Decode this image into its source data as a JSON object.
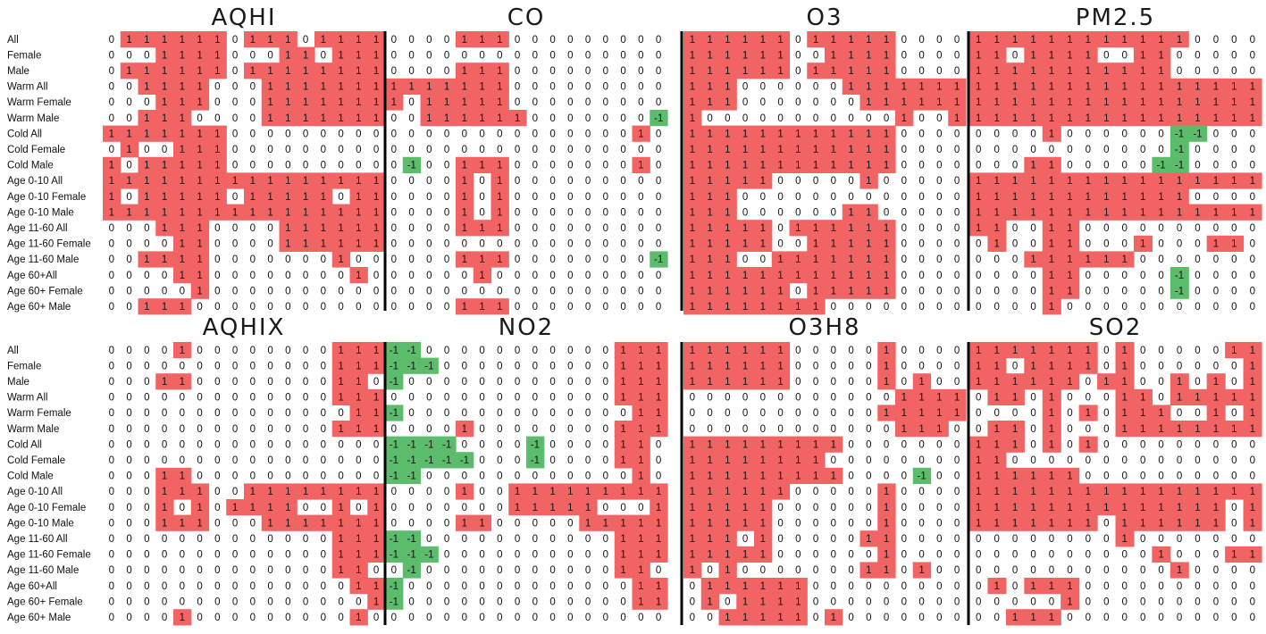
{
  "colors": {
    "positive": "#f26464",
    "negative": "#5bbd6b",
    "neutral": "#ffffff",
    "divider": "#000000"
  },
  "chart_data": [
    {
      "type": "heatmap",
      "rows": [
        "All",
        "Female",
        "Male",
        "Warm All",
        "Warm Female",
        "Warm Male",
        "Cold All",
        "Cold Female",
        "Cold Male",
        "Age 0-10 All",
        "Age 0-10 Female",
        "Age 0-10 Male",
        "Age 11-60 All",
        "Age 11-60 Female",
        "Age 11-60 Male",
        "Age 60+All",
        "Age 60+ Female",
        "Age 60+ Male"
      ],
      "panels": [
        {
          "title": "AQHI",
          "values": [
            "0111111011101111",
            "0001111000110111",
            "0111111011111111",
            "0011110001111111",
            "0001110001111111",
            "0011100001111111",
            "1111111000000000",
            "0100111000000000",
            "1011111000000000",
            "1111111111111111",
            "1011111011111011",
            "1111111111111111",
            "0001110000111111",
            "0000110000111111",
            "0011110000000100",
            "0000110000000010",
            "0000010000000000",
            "0011100000000000"
          ]
        },
        {
          "title": "CO",
          "values": [
            "0000111000000000",
            "0000000000000000",
            "0000111000000000",
            "1111111000000000",
            "1011111000000000",
            "0011111100000002",
            "0000000000000010",
            "0000000000000000",
            "0200111000000010",
            "0000101000000000",
            "0000101000000000",
            "0000101000000000",
            "0000111000000000",
            "0000000000000000",
            "0000111000000002",
            "0000010000000000",
            "0000000000000000",
            "0000111000000000"
          ]
        },
        {
          "title": "O3",
          "values": [
            "1111110111110000",
            "1111110011110000",
            "1111110111110000",
            "1110000001111111",
            "1110000000111111",
            "1000000000001001",
            "1111111111110000",
            "1111111111110000",
            "1111111111110000",
            "1111100000100000",
            "1110000000000000",
            "1110000001100000",
            "1111101111110000",
            "1111100111110000",
            "1110011111110000",
            "1111111111110000",
            "1111110111110000",
            "1111111100000000"
          ]
        },
        {
          "title": "PM2.5",
          "values": [
            "1111111111110000",
            "1101111001100000",
            "1111111111100000",
            "1111111111111111",
            "1111111111111111",
            "1111111111111111",
            "0000100000022000",
            "0000000000020000",
            "0001100000220000",
            "1111111111111111",
            "1111111111110000",
            "1111111111111111",
            "1100110000000000",
            "0100110001000110",
            "0001111110000000",
            "0000110000020000",
            "0000110000020000",
            "0000100000000000"
          ]
        },
        {
          "title": "AQHIX",
          "values": [
            "0000100000000111",
            "0000000000000111",
            "0001100000000110",
            "0000000000000111",
            "0000000000000011",
            "0000000000000111",
            "0000000000000000",
            "0000000000000000",
            "0001100000000000",
            "0001110011111111",
            "0001010111100101",
            "0001110001111111",
            "0000000000000111",
            "0000000000000111",
            "0000000000000110",
            "0000000000000011",
            "0000000000000001",
            "0000100000000010"
          ]
        },
        {
          "title": "NO2",
          "values": [
            "2200000000000111",
            "2220000000000111",
            "2000000000000111",
            "0000000000000111",
            "2000000000000011",
            "0000100000000111",
            "2222000020000110",
            "2222200020000110",
            "2200000000000010",
            "0000100111111111",
            "0000000111110001",
            "0000110000011111",
            "2200000000000111",
            "2220000000000111",
            "0200000000000110",
            "2000000000000011",
            "2000000000000011",
            "0000000000000000"
          ]
        },
        {
          "title": "O3H8",
          "values": [
            "1111110000010000",
            "1111110000010000",
            "1111110000010100",
            "0000000000001111",
            "0000000000011111",
            "0000000000001110",
            "1111111110000000",
            "1111111100000000",
            "1111111110000200",
            "1111110000010000",
            "1111100000010000",
            "1111100000010000",
            "1110100000110000",
            "1111100000010000",
            "1010000000110100",
            "0111111000000000",
            "0101111000000000",
            "0011111010000000"
          ]
        },
        {
          "title": "SO2",
          "values": [
            "1111111010000011",
            "1101111010000001",
            "1111110110010101",
            "0110100011011111",
            "0000101011100101",
            "0110100011111111",
            "1110101000000000",
            "1100000000000000",
            "1111110000000000",
            "1111111111111111",
            "1111111111111101",
            "1111111011111101",
            "0000000010000000",
            "0000000000100011",
            "0000000000010000",
            "0101110000000000",
            "0000010000000000",
            "0011100000000000"
          ]
        }
      ]
    }
  ]
}
